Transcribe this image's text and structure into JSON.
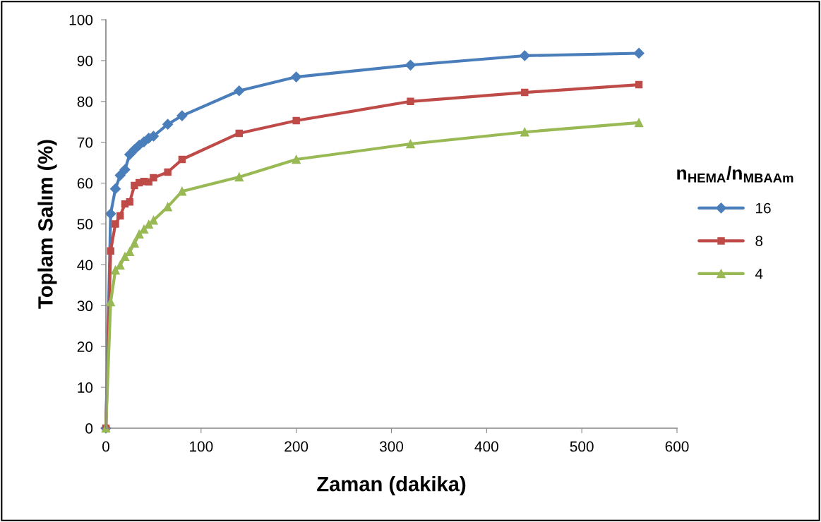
{
  "chart_data": {
    "type": "line",
    "xlabel": "Zaman (dakika)",
    "ylabel": "Toplam Salım (%)",
    "legend_title": "n$_{HEMA}$/n$_{MBAAm}$",
    "x": [
      0,
      5,
      10,
      15,
      20,
      25,
      30,
      35,
      40,
      45,
      50,
      65,
      80,
      140,
      200,
      320,
      440,
      560
    ],
    "series": [
      {
        "name": "16",
        "color": "#4a7ebb",
        "marker": "diamond",
        "values": [
          0,
          52.5,
          58.6,
          61.9,
          63.3,
          67.0,
          68.2,
          69.3,
          70.1,
          71.0,
          71.5,
          74.4,
          76.5,
          82.6,
          86.0,
          88.9,
          91.2,
          91.8
        ]
      },
      {
        "name": "8",
        "color": "#be4b48",
        "marker": "square",
        "values": [
          0,
          43.4,
          50.0,
          52.0,
          54.9,
          55.4,
          59.4,
          60.1,
          60.4,
          60.3,
          61.3,
          62.7,
          65.8,
          72.2,
          75.3,
          80.0,
          82.2,
          84.1
        ]
      },
      {
        "name": "4",
        "color": "#98b954",
        "marker": "triangle",
        "values": [
          0,
          30.9,
          38.7,
          39.9,
          42.0,
          43.2,
          45.3,
          47.5,
          48.7,
          49.9,
          50.9,
          54.2,
          58.0,
          61.5,
          65.8,
          69.6,
          72.5,
          74.8
        ]
      }
    ],
    "xlim": [
      0,
      600
    ],
    "xticks": [
      0,
      100,
      200,
      300,
      400,
      500,
      600
    ],
    "ylim": [
      0,
      100
    ],
    "yticks": [
      0,
      10,
      20,
      30,
      40,
      50,
      60,
      70,
      80,
      90,
      100
    ],
    "grid": false,
    "legend": "right"
  }
}
